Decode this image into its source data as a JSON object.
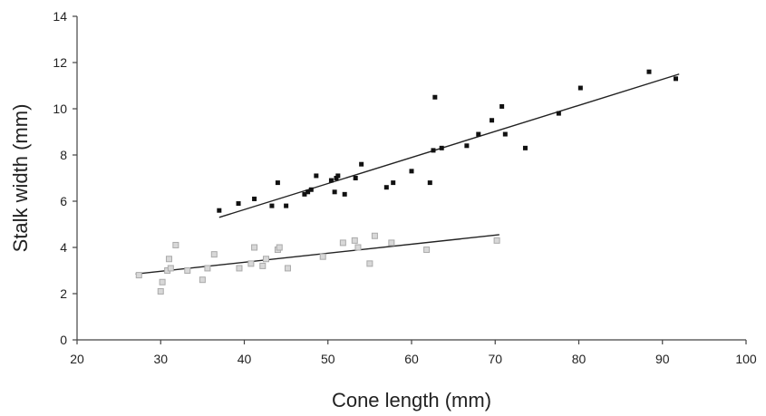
{
  "chart_data": {
    "type": "scatter",
    "title": "",
    "xlabel": "Cone length (mm)",
    "ylabel": "Stalk width (mm)",
    "xlim": [
      20,
      100
    ],
    "ylim": [
      0,
      14
    ],
    "xticks": [
      20,
      30,
      40,
      50,
      60,
      70,
      80,
      90,
      100
    ],
    "yticks": [
      0,
      2,
      4,
      6,
      8,
      10,
      12,
      14
    ],
    "grid": false,
    "legend": "none",
    "series": [
      {
        "marker": "filled-square",
        "color": "#111111",
        "points": [
          [
            37,
            5.6
          ],
          [
            39.3,
            5.9
          ],
          [
            41.2,
            6.1
          ],
          [
            43.3,
            5.8
          ],
          [
            44,
            6.8
          ],
          [
            45,
            5.8
          ],
          [
            47.2,
            6.3
          ],
          [
            47.6,
            6.4
          ],
          [
            48,
            6.5
          ],
          [
            48.6,
            7.1
          ],
          [
            50.4,
            6.9
          ],
          [
            50.8,
            6.4
          ],
          [
            51,
            7.0
          ],
          [
            51.2,
            7.1
          ],
          [
            52,
            6.3
          ],
          [
            53.3,
            7.0
          ],
          [
            54,
            7.6
          ],
          [
            57,
            6.6
          ],
          [
            57.8,
            6.8
          ],
          [
            60,
            7.3
          ],
          [
            62.2,
            6.8
          ],
          [
            62.6,
            8.2
          ],
          [
            62.8,
            10.5
          ],
          [
            63.6,
            8.3
          ],
          [
            66.6,
            8.4
          ],
          [
            68,
            8.9
          ],
          [
            69.6,
            9.5
          ],
          [
            70.8,
            10.1
          ],
          [
            71.2,
            8.9
          ],
          [
            73.6,
            8.3
          ],
          [
            77.6,
            9.8
          ],
          [
            80.2,
            10.9
          ],
          [
            88.4,
            11.6
          ],
          [
            91.6,
            11.3
          ]
        ],
        "trendline": [
          [
            37,
            5.3
          ],
          [
            92,
            11.5
          ]
        ]
      },
      {
        "marker": "open-square",
        "color": "#aaaaaa",
        "points": [
          [
            27.4,
            2.8
          ],
          [
            30,
            2.1
          ],
          [
            30.2,
            2.5
          ],
          [
            30.8,
            3.0
          ],
          [
            31,
            3.5
          ],
          [
            31.2,
            3.1
          ],
          [
            31.8,
            4.1
          ],
          [
            33.2,
            3.0
          ],
          [
            35,
            2.6
          ],
          [
            35.6,
            3.1
          ],
          [
            36.4,
            3.7
          ],
          [
            39.4,
            3.1
          ],
          [
            40.8,
            3.3
          ],
          [
            41.2,
            4.0
          ],
          [
            42.2,
            3.2
          ],
          [
            42.6,
            3.5
          ],
          [
            44,
            3.9
          ],
          [
            44.2,
            4.0
          ],
          [
            45.2,
            3.1
          ],
          [
            49.4,
            3.6
          ],
          [
            51.8,
            4.2
          ],
          [
            53.2,
            4.3
          ],
          [
            53.6,
            4.0
          ],
          [
            55,
            3.3
          ],
          [
            55.6,
            4.5
          ],
          [
            57.6,
            4.2
          ],
          [
            61.8,
            3.9
          ],
          [
            70.2,
            4.3
          ]
        ],
        "trendline": [
          [
            27,
            2.85
          ],
          [
            70.5,
            4.55
          ]
        ]
      }
    ]
  }
}
